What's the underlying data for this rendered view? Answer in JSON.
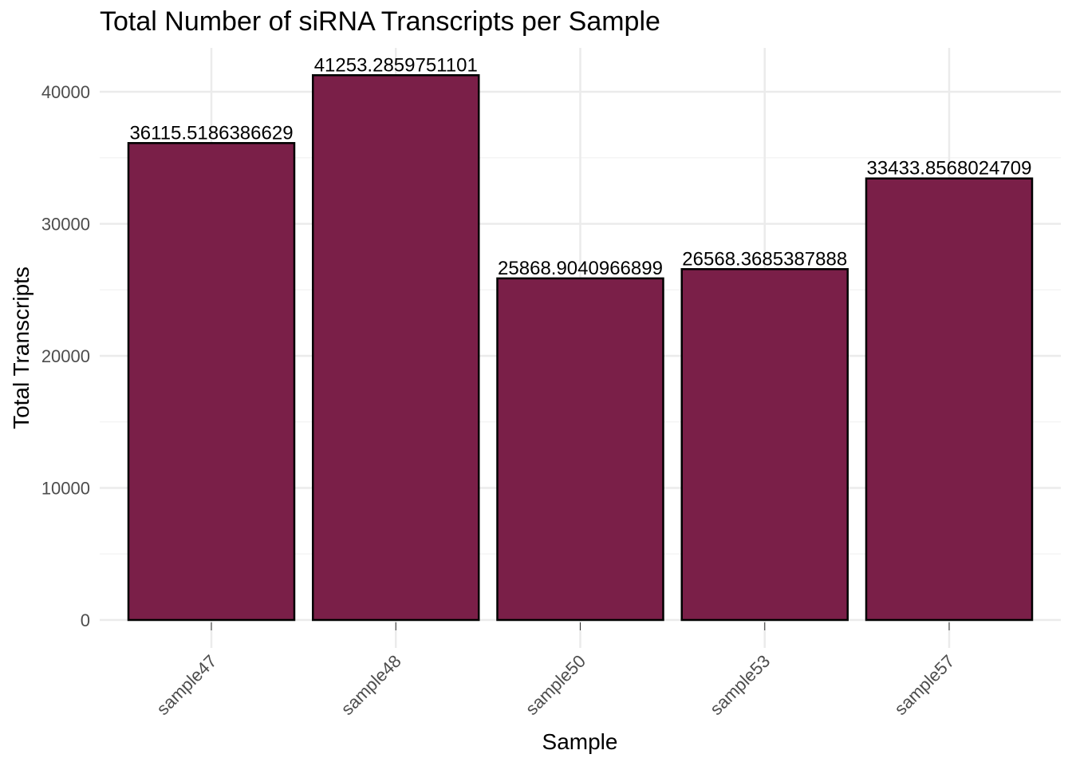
{
  "chart_data": {
    "type": "bar",
    "title": "Total Number of siRNA Transcripts per Sample",
    "xlabel": "Sample",
    "ylabel": "Total Transcripts",
    "categories": [
      "sample47",
      "sample48",
      "sample50",
      "sample53",
      "sample57"
    ],
    "values": [
      36115.5186386629,
      41253.2859751101,
      25868.9040966899,
      26568.3685387888,
      33433.8568024709
    ],
    "data_labels": [
      "36115.5186386629",
      "41253.2859751101",
      "25868.9040966899",
      "26568.3685387888",
      "33433.8568024709"
    ],
    "yticks": [
      0,
      10000,
      20000,
      30000,
      40000
    ],
    "ytick_labels": [
      "0",
      "10000",
      "20000",
      "30000",
      "40000"
    ],
    "ylim": [
      0,
      43500
    ],
    "grid": true,
    "legend": "none",
    "colors": {
      "bar_fill": "#7a1f48",
      "bar_stroke": "#000000",
      "grid_major": "#ebebeb",
      "grid_minor": "#f4f4f4"
    }
  }
}
